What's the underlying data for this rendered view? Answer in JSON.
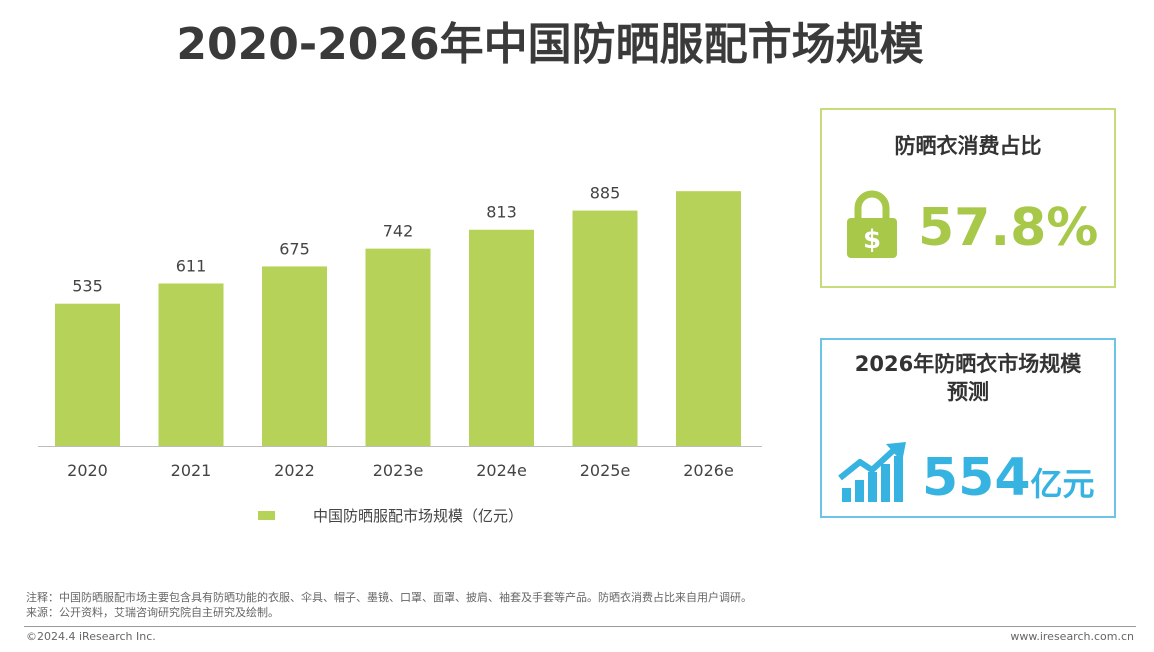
{
  "title": "2020-2026年中国防晒服配市场规模",
  "chart_data": {
    "type": "bar",
    "title": "2020-2026年中国防晒服配市场规模",
    "categories": [
      "2020",
      "2021",
      "2022",
      "2023e",
      "2024e",
      "2025e",
      "2026e"
    ],
    "series": [
      {
        "name": "中国防晒服配市场规模（亿元）",
        "values": [
          535,
          611,
          675,
          742,
          813,
          885,
          958
        ]
      }
    ],
    "ylim": [
      0,
      1000
    ],
    "grid": false,
    "legend": "bottom",
    "bar_color": "#b7d258"
  },
  "legend": {
    "label": "中国防晒服配市场规模（亿元）"
  },
  "card1": {
    "title": "防晒衣消费占比",
    "value": "57.8%",
    "icon": "lock-dollar-icon",
    "border_color": "#c6dc7a",
    "accent": "#a8c84a"
  },
  "card2": {
    "title_line1": "2026年防晒衣市场规模",
    "title_line2": "预测",
    "value": "554",
    "unit": "亿元",
    "icon": "trend-up-bar-icon",
    "border_color": "#6cc5e6",
    "accent": "#36b3e0"
  },
  "notes": {
    "note": "注释：中国防晒服配市场主要包含具有防晒功能的衣服、伞具、帽子、墨镜、口罩、面罩、披肩、袖套及手套等产品。防晒衣消费占比来自用户调研。",
    "source": "来源：公开资料，艾瑞咨询研究院自主研究及绘制。"
  },
  "footer": {
    "copyright": "©2024.4 iResearch Inc.",
    "url": "www.iresearch.com.cn"
  }
}
